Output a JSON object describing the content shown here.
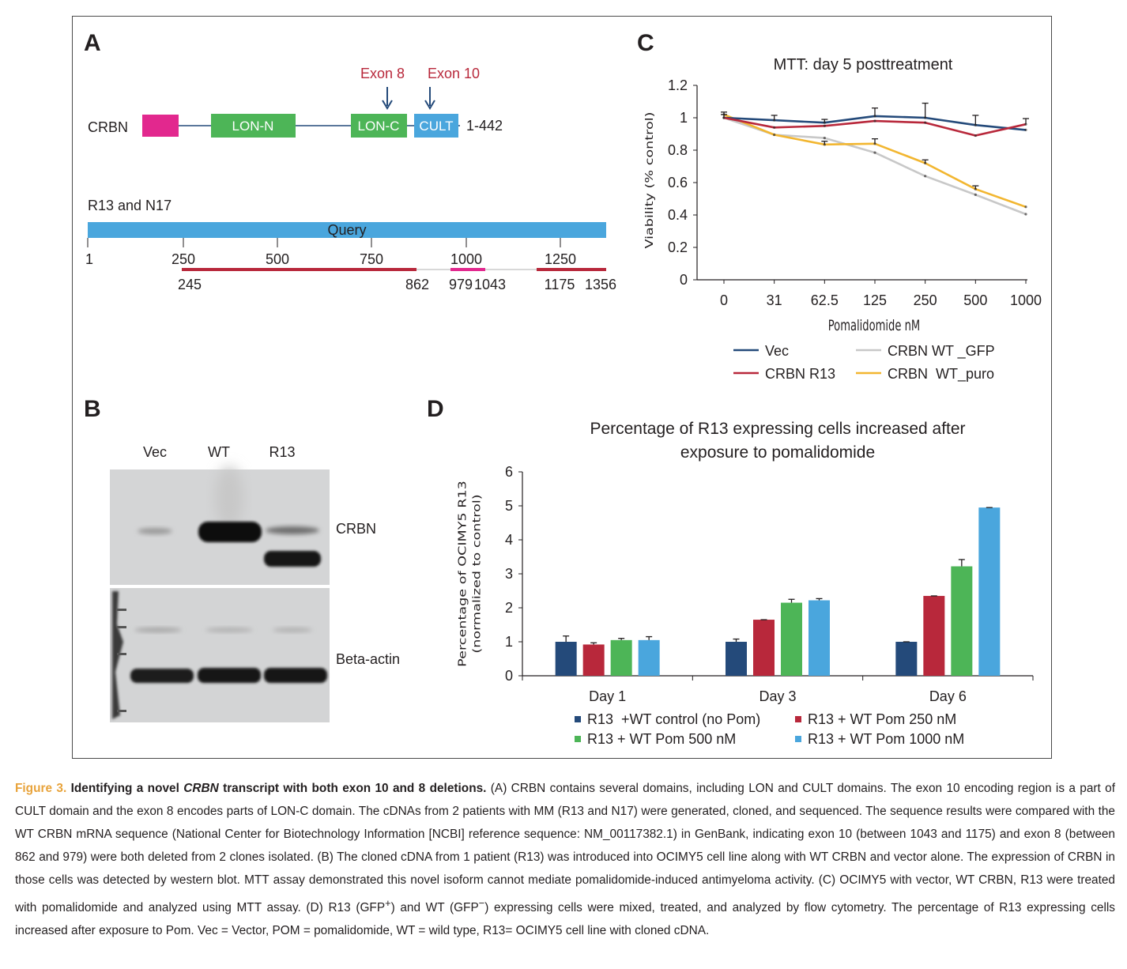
{
  "panels": {
    "A": {
      "letter": "A",
      "gene": "CRBN",
      "domains": [
        "LON-N",
        "LON-C",
        "CULT"
      ],
      "range_label": "1-442",
      "exon8_label": "Exon 8",
      "exon10_label": "Exon 10",
      "clone_label": "R13 and N17",
      "query_label": "Query",
      "ticks": [
        "1",
        "250",
        "500",
        "750",
        "1000",
        "1250"
      ],
      "segment_labels": [
        "245",
        "862",
        "979",
        "1043",
        "1175",
        "1356"
      ],
      "colors": {
        "pink": "#e2288e",
        "green": "#4db557",
        "blue": "#4aa6dd",
        "red": "#b8283b",
        "navy": "#244a7a"
      }
    },
    "B": {
      "letter": "B",
      "lanes": [
        "Vec",
        "WT",
        "R13"
      ],
      "blot_labels": [
        "CRBN",
        "Beta-actin"
      ]
    },
    "C": {
      "letter": "C",
      "legend": [
        "Vec",
        "CRBN R13",
        "CRBN WT _GFP",
        "CRBN  WT_puro"
      ]
    },
    "D": {
      "letter": "D",
      "legend": [
        "R13  +WT control (no Pom)",
        "R13 + WT Pom 250 nM",
        "R13 + WT Pom 500 nM",
        "R13 + WT Pom 1000 nM"
      ]
    }
  },
  "chart_data": [
    {
      "type": "line",
      "title": "MTT:  day 5  posttreatment",
      "xlabel": "Pomalidomide nM",
      "ylabel": "Viability (% control)",
      "categories": [
        "0",
        "31",
        "62.5",
        "125",
        "250",
        "500",
        "1000"
      ],
      "ylim": [
        0,
        1.2
      ],
      "yticks": [
        "0",
        "0.2",
        "0.4",
        "0.6",
        "0.8",
        "1",
        "1.2"
      ],
      "series": [
        {
          "name": "Vec",
          "color": "#244a7a",
          "values": [
            1.0,
            0.985,
            0.97,
            1.01,
            1.0,
            0.955,
            0.925
          ],
          "err": [
            0.02,
            0.03,
            0.02,
            0.05,
            0.09,
            0.06,
            0.0
          ]
        },
        {
          "name": "CRBN R13",
          "color": "#b8283b",
          "values": [
            1.0,
            0.94,
            0.95,
            0.98,
            0.97,
            0.89,
            0.96
          ],
          "err": [
            0.0,
            0.0,
            0.0,
            0.0,
            0.0,
            0.0,
            0.035
          ]
        },
        {
          "name": "CRBN WT _GFP",
          "color": "#c8c8c8",
          "values": [
            1.0,
            0.895,
            0.875,
            0.785,
            0.64,
            0.525,
            0.405
          ],
          "err": [
            0.0,
            0.0,
            0.0,
            0.0,
            0.0,
            0.0,
            0.0
          ]
        },
        {
          "name": "CRBN  WT_puro",
          "color": "#f2b630",
          "values": [
            1.02,
            0.895,
            0.835,
            0.84,
            0.72,
            0.56,
            0.45
          ],
          "err": [
            0.015,
            0.0,
            0.02,
            0.03,
            0.02,
            0.02,
            0.0
          ]
        }
      ]
    },
    {
      "type": "bar",
      "title": "Percentage of R13 expressing cells increased after exposure to pomalidomide",
      "title_lines": [
        "Percentage of R13 expressing cells increased after",
        "exposure to pomalidomide"
      ],
      "ylabel": "Percentage of  OCIMY5 R13 (normalized to control)",
      "ylabel_lines": [
        "Percentage of  OCIMY5 R13",
        "(normalized to control)"
      ],
      "categories": [
        "Day 1",
        "Day 3",
        "Day 6"
      ],
      "ylim": [
        0,
        6
      ],
      "yticks": [
        "0",
        "1",
        "2",
        "3",
        "4",
        "5",
        "6"
      ],
      "series": [
        {
          "name": "R13  +WT control (no Pom)",
          "color": "#244a7a",
          "values": [
            1.0,
            1.0,
            1.0
          ],
          "err": [
            0.17,
            0.08,
            0.0
          ]
        },
        {
          "name": "R13 + WT Pom 250 nM",
          "color": "#b8283b",
          "values": [
            0.92,
            1.65,
            2.35
          ],
          "err": [
            0.05,
            0.0,
            0.0
          ]
        },
        {
          "name": "R13 + WT Pom 500 nM",
          "color": "#4db557",
          "values": [
            1.05,
            2.15,
            3.22
          ],
          "err": [
            0.05,
            0.1,
            0.2
          ]
        },
        {
          "name": "R13 + WT Pom 1000 nM",
          "color": "#4aa6dd",
          "values": [
            1.05,
            2.22,
            4.95
          ],
          "err": [
            0.1,
            0.05,
            0.0
          ]
        }
      ]
    }
  ],
  "caption": {
    "fig_no": "Figure 3.",
    "title_1": "Identifying a novel",
    "title_gene": "CRBN",
    "title_2": "transcript with both exon 10 and 8 deletions.",
    "body": "(A) CRBN contains several domains, including LON and CULT domains. The exon 10 encoding region is a part of CULT domain and the exon 8 encodes parts of LON-C domain. The cDNAs from 2 patients with MM (R13 and N17) were generated, cloned, and sequenced. The sequence results were compared with the WT CRBN mRNA sequence (National Center for Biotechnology Information [NCBI] reference sequence: NM_00117382.1) in GenBank, indicating exon 10 (between 1043 and 1175) and exon 8 (between 862 and 979) were both deleted from 2 clones isolated. (B) The cloned cDNA from 1 patient (R13) was introduced into OCIMY5 cell line along with WT CRBN and vector alone. The expression of CRBN in those cells was detected by western blot. MTT assay demonstrated this novel isoform cannot mediate pomalidomide-induced antimyeloma activity. (C) OCIMY5 with vector, WT CRBN, R13 were treated with pomalidomide and analyzed using MTT assay. (D) R13 (GFP",
    "sup_plus": "+",
    "body_2": ") and WT (GFP",
    "sup_minus": "−",
    "body_3": ") expressing cells were mixed, treated, and analyzed by flow cytometry. The percentage of R13 expressing cells increased after exposure to Pom. Vec = Vector, POM = pomalidomide, WT = wild type, R13= OCIMY5 cell line with cloned cDNA."
  }
}
